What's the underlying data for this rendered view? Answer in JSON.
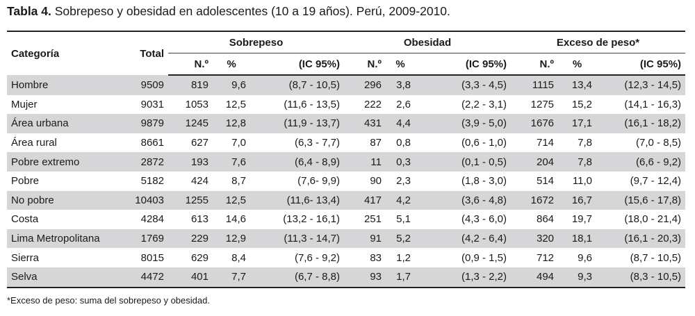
{
  "caption": {
    "label": "Tabla 4.",
    "text": " Sobrepeso y obesidad en adolescentes (10 a 19 años). Perú, 2009-2010."
  },
  "headers": {
    "categoria": "Categoría",
    "total": "Total",
    "groups": [
      "Sobrepeso",
      "Obesidad",
      "Exceso de peso*"
    ],
    "sub": [
      "N.º",
      "%",
      "(IC 95%)"
    ]
  },
  "rows": [
    {
      "cat": "Hombre",
      "total": "9509",
      "s_n": "819",
      "s_p": "9,6",
      "s_ic": "(8,7 - 10,5)",
      "o_n": "296",
      "o_p": "3,8",
      "o_ic": "(3,3 - 4,5)",
      "e_n": "1115",
      "e_p": "13,4",
      "e_ic": "(12,3 - 14,5)"
    },
    {
      "cat": "Mujer",
      "total": "9031",
      "s_n": "1053",
      "s_p": "12,5",
      "s_ic": "(11,6 - 13,5)",
      "o_n": "222",
      "o_p": "2,6",
      "o_ic": "(2,2 - 3,1)",
      "e_n": "1275",
      "e_p": "15,2",
      "e_ic": "(14,1 - 16,3)"
    },
    {
      "cat": "Área urbana",
      "total": "9879",
      "s_n": "1245",
      "s_p": "12,8",
      "s_ic": "(11,9 - 13,7)",
      "o_n": "431",
      "o_p": "4,4",
      "o_ic": "(3,9 - 5,0)",
      "e_n": "1676",
      "e_p": "17,1",
      "e_ic": "(16,1 - 18,2)"
    },
    {
      "cat": "Área rural",
      "total": "8661",
      "s_n": "627",
      "s_p": "7,0",
      "s_ic": "(6,3 - 7,7)",
      "o_n": "87",
      "o_p": "0,8",
      "o_ic": "(0,6 - 1,0)",
      "e_n": "714",
      "e_p": "7,8",
      "e_ic": "(7,0 - 8,5)"
    },
    {
      "cat": "Pobre extremo",
      "total": "2872",
      "s_n": "193",
      "s_p": "7,6",
      "s_ic": "(6,4 - 8,9)",
      "o_n": "11",
      "o_p": "0,3",
      "o_ic": "(0,1 - 0,5)",
      "e_n": "204",
      "e_p": "7,8",
      "e_ic": "(6,6 - 9,2)"
    },
    {
      "cat": "Pobre",
      "total": "5182",
      "s_n": "424",
      "s_p": "8,7",
      "s_ic": "(7,6- 9,9)",
      "o_n": "90",
      "o_p": "2,3",
      "o_ic": "(1,8 - 3,0)",
      "e_n": "514",
      "e_p": "11,0",
      "e_ic": "(9,7 - 12,4)"
    },
    {
      "cat": "No pobre",
      "total": "10403",
      "s_n": "1255",
      "s_p": "12,5",
      "s_ic": "(11,6- 13,4)",
      "o_n": "417",
      "o_p": "4,2",
      "o_ic": "(3,6 - 4,8)",
      "e_n": "1672",
      "e_p": "16,7",
      "e_ic": "(15,6 - 17,8)"
    },
    {
      "cat": "Costa",
      "total": "4284",
      "s_n": "613",
      "s_p": "14,6",
      "s_ic": "(13,2 - 16,1)",
      "o_n": "251",
      "o_p": "5,1",
      "o_ic": "(4,3 - 6,0)",
      "e_n": "864",
      "e_p": "19,7",
      "e_ic": "(18,0 - 21,4)"
    },
    {
      "cat": "Lima Metropolitana",
      "total": "1769",
      "s_n": "229",
      "s_p": "12,9",
      "s_ic": "(11,3 - 14,7)",
      "o_n": "91",
      "o_p": "5,2",
      "o_ic": "(4,2 - 6,4)",
      "e_n": "320",
      "e_p": "18,1",
      "e_ic": "(16,1 - 20,3)"
    },
    {
      "cat": "Sierra",
      "total": "8015",
      "s_n": "629",
      "s_p": "8,4",
      "s_ic": "(7,6 - 9,2)",
      "o_n": "83",
      "o_p": "1,2",
      "o_ic": "(0,9 - 1,5)",
      "e_n": "712",
      "e_p": "9,6",
      "e_ic": "(8,7 - 10,5)"
    },
    {
      "cat": "Selva",
      "total": "4472",
      "s_n": "401",
      "s_p": "7,7",
      "s_ic": "(6,7 - 8,8)",
      "o_n": "93",
      "o_p": "1,7",
      "o_ic": "(1,3 - 2,2)",
      "e_n": "494",
      "e_p": "9,3",
      "e_ic": "(8,3 - 10,5)"
    }
  ],
  "footnote": "*Exceso de peso: suma del sobrepeso y obesidad.",
  "colors": {
    "alt_row": "#d6d6d8",
    "rule": "#222222"
  }
}
